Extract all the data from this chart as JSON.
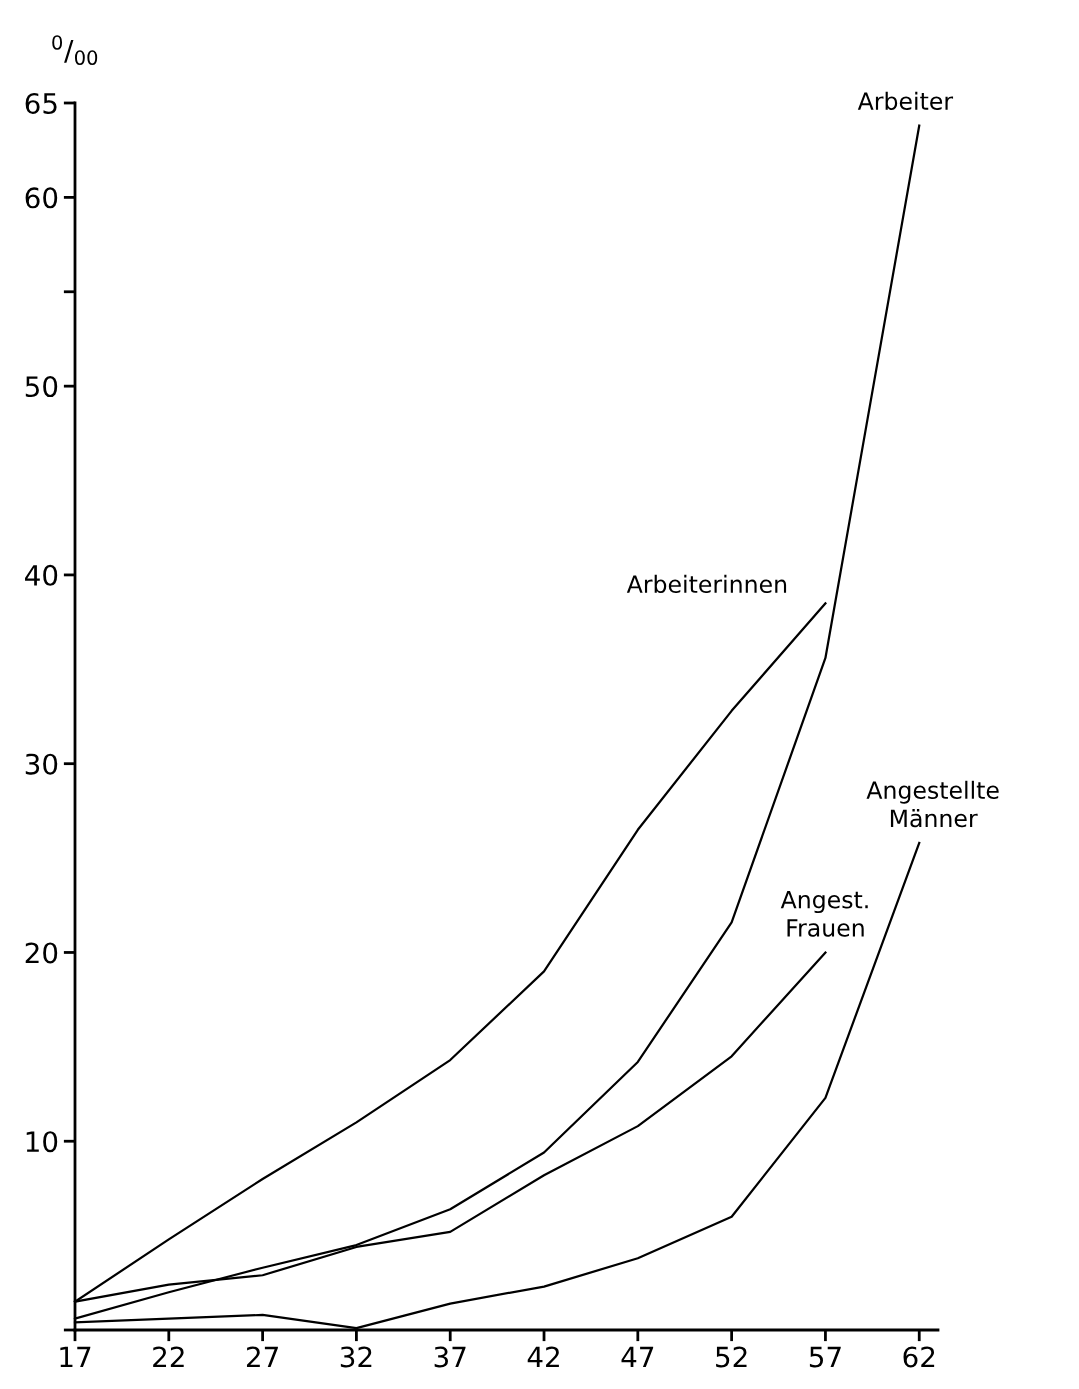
{
  "chart_data": {
    "type": "line",
    "ylabel": "$^{0}$/$_{00}$",
    "xlim": [
      17,
      63
    ],
    "xticks": [
      17,
      22,
      27,
      32,
      37,
      42,
      47,
      52,
      57,
      62
    ],
    "ylim": [
      0,
      65
    ],
    "yticks": [
      {
        "value": 0,
        "label": null
      },
      10,
      20,
      30,
      40,
      50,
      {
        "value": 55,
        "label": null
      },
      60,
      65
    ],
    "x": [
      17,
      22,
      27,
      32,
      37,
      42,
      47,
      52,
      57,
      62
    ],
    "grid": false,
    "legend": false,
    "marker": "none",
    "line_style": "solid",
    "series": [
      {
        "name": "Arbeiter",
        "color": "#000000",
        "values": [
          0.6,
          2.0,
          3.3,
          4.5,
          6.4,
          9.4,
          14.2,
          21.6,
          35.6,
          63.8
        ]
      },
      {
        "name": "Arbeiterinnen",
        "color": "#000000",
        "values": [
          1.5,
          4.8,
          8.0,
          11.0,
          14.3,
          19.0,
          26.5,
          32.8,
          38.5,
          null
        ]
      },
      {
        "name": "Angest.\nFrauen",
        "color": "#000000",
        "values": [
          1.5,
          2.4,
          2.9,
          4.4,
          5.2,
          8.2,
          10.8,
          14.5,
          20.0,
          null
        ]
      },
      {
        "name": "Angestellte\nMänner",
        "color": "#000000",
        "values": [
          0.4,
          0.6,
          0.8,
          0.1,
          1.4,
          2.3,
          3.8,
          6.0,
          12.3,
          25.8
        ]
      }
    ]
  }
}
